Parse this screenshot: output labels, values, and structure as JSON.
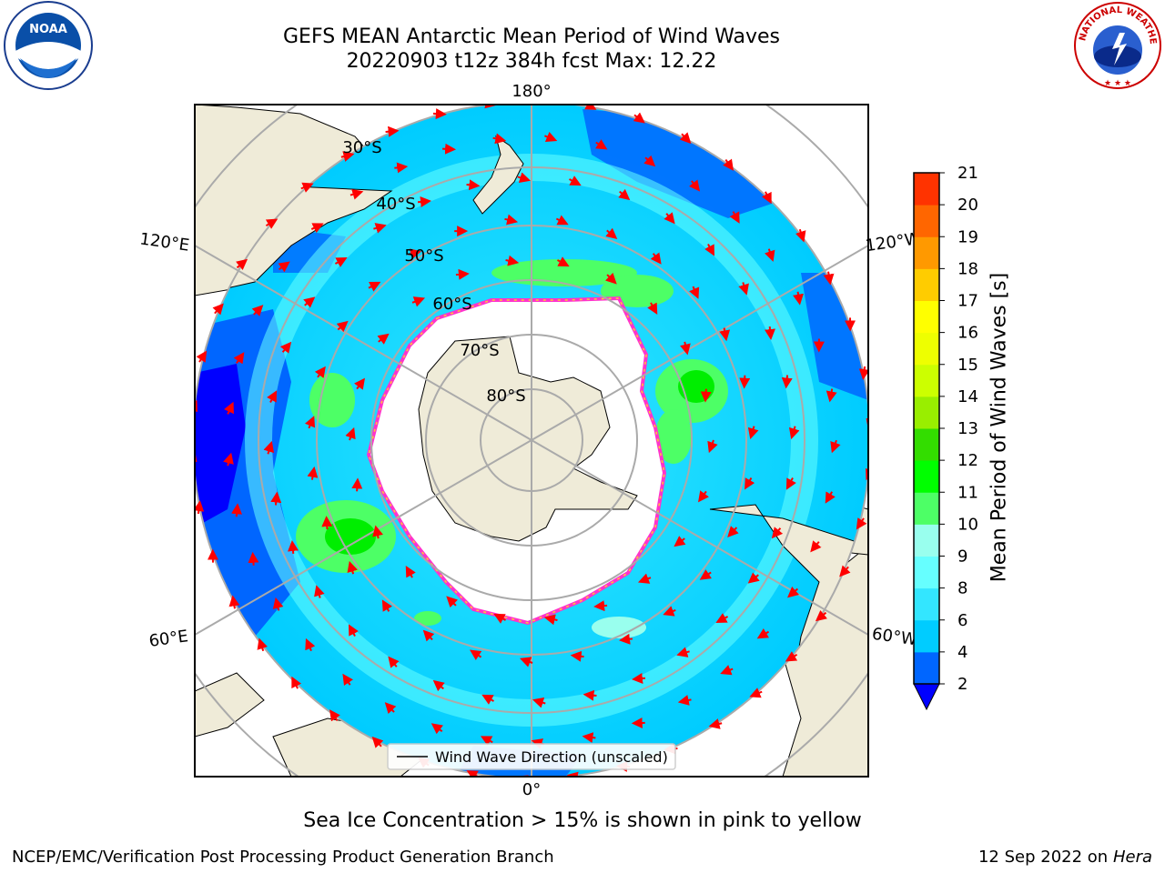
{
  "title": {
    "line1": "GEFS MEAN Antarctic Mean Period of Wind Waves",
    "line2": "20220903 t12z 384h fcst   Max: 12.22"
  },
  "logos": {
    "left": "noaa-logo",
    "right": "nws-logo"
  },
  "nws_logo_text": "NATIONAL WEATHER SERVICE",
  "noaa_logo_text": "NOAA",
  "map": {
    "projection": "south-polar-stereographic",
    "longitude_labels": {
      "top": "180°",
      "bottom": "0°",
      "upper_left": "120°E",
      "lower_left": "60°E",
      "upper_right": "120°W",
      "lower_right": "60°W"
    },
    "latitude_labels": [
      "30°S",
      "40°S",
      "50°S",
      "60°S",
      "70°S",
      "80°S"
    ],
    "legend": "Wind Wave Direction (unscaled)",
    "arrow_color": "#ff0000",
    "land_color": "#efebd8",
    "ice_edge_colors": [
      "#ff33cc",
      "#ffcc33"
    ]
  },
  "colorbar": {
    "label": "Mean Period of Wind Waves [s]",
    "ticks": [
      "2",
      "4",
      "6",
      "8",
      "9",
      "10",
      "11",
      "12",
      "13",
      "14",
      "15",
      "16",
      "17",
      "18",
      "19",
      "20",
      "21"
    ],
    "colors": [
      "#0066ff",
      "#00ccff",
      "#33e6ff",
      "#66ffff",
      "#99ffee",
      "#4dff66",
      "#00ff00",
      "#33dd00",
      "#99ee00",
      "#ccff00",
      "#eeff00",
      "#ffff00",
      "#ffcc00",
      "#ff9900",
      "#ff6600",
      "#ff3300",
      "#ff0000"
    ],
    "under_color": "#0000ff"
  },
  "ice_note": "Sea Ice Concentration > 15% is shown in pink to yellow",
  "footer": {
    "left": "NCEP/EMC/Verification Post Processing Product Generation Branch",
    "right_date": "12 Sep 2022 on",
    "right_machine": "Hera"
  }
}
